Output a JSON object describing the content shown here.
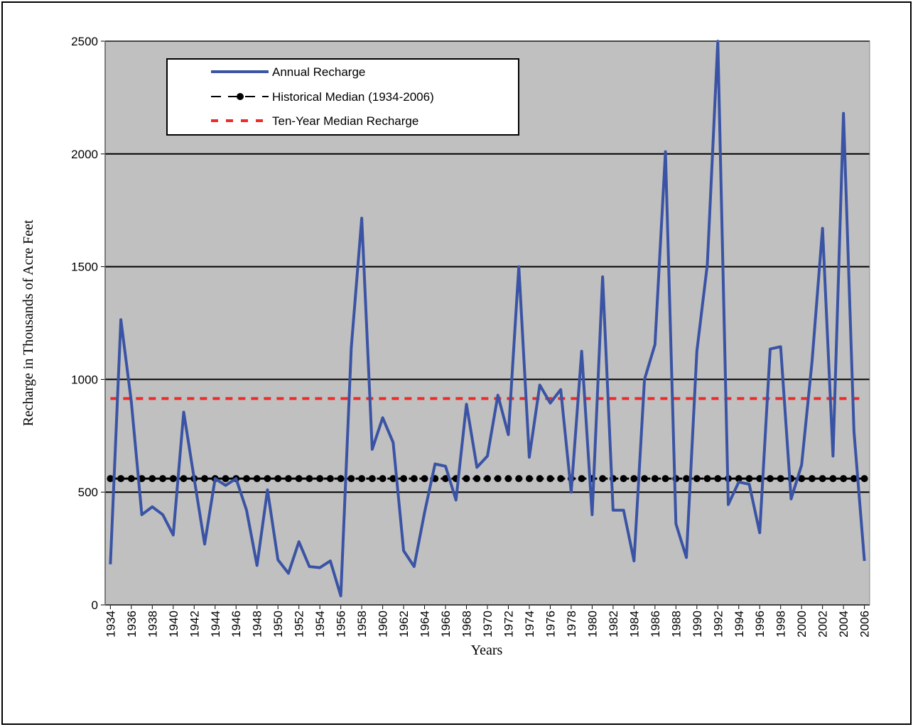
{
  "chart_data": {
    "type": "line",
    "x_label": "Years",
    "y_label": "Recharge in Thousands of Acre Feet",
    "x": [
      1934,
      1935,
      1936,
      1937,
      1938,
      1939,
      1940,
      1941,
      1942,
      1943,
      1944,
      1945,
      1946,
      1947,
      1948,
      1949,
      1950,
      1951,
      1952,
      1953,
      1954,
      1955,
      1956,
      1957,
      1958,
      1959,
      1960,
      1961,
      1962,
      1963,
      1964,
      1965,
      1966,
      1967,
      1968,
      1969,
      1970,
      1971,
      1972,
      1973,
      1974,
      1975,
      1976,
      1977,
      1978,
      1979,
      1980,
      1981,
      1982,
      1983,
      1984,
      1985,
      1986,
      1987,
      1988,
      1989,
      1990,
      1991,
      1992,
      1993,
      1994,
      1995,
      1996,
      1997,
      1998,
      1999,
      2000,
      2001,
      2002,
      2003,
      2004,
      2005,
      2006
    ],
    "series": [
      {
        "name": "Annual Recharge",
        "color": "#3a53a4",
        "values": [
          180,
          1265,
          900,
          400,
          435,
          400,
          310,
          855,
          560,
          270,
          560,
          530,
          560,
          420,
          175,
          510,
          200,
          140,
          280,
          170,
          165,
          195,
          40,
          1140,
          1715,
          690,
          830,
          720,
          240,
          170,
          410,
          625,
          615,
          465,
          890,
          610,
          660,
          930,
          755,
          1500,
          655,
          975,
          895,
          955,
          500,
          1125,
          400,
          1455,
          420,
          420,
          195,
          1000,
          1155,
          2010,
          360,
          210,
          1125,
          1510,
          2500,
          445,
          545,
          535,
          320,
          1135,
          1145,
          470,
          620,
          1080,
          1670,
          660,
          2180,
          770,
          195
        ]
      }
    ],
    "reference_lines": [
      {
        "name": "Historical Median (1934-2006)",
        "color": "#000000",
        "value": 560,
        "style": "dot-dash"
      },
      {
        "name": "Ten-Year Median Recharge",
        "color": "#ee2a2a",
        "value": 915,
        "style": "dash"
      }
    ],
    "xlim": [
      1933.5,
      2006.5
    ],
    "xticks": [
      1934,
      1936,
      1938,
      1940,
      1942,
      1944,
      1946,
      1948,
      1950,
      1952,
      1954,
      1956,
      1958,
      1960,
      1962,
      1964,
      1966,
      1968,
      1970,
      1972,
      1974,
      1976,
      1978,
      1980,
      1982,
      1984,
      1986,
      1988,
      1990,
      1992,
      1994,
      1996,
      1998,
      2000,
      2002,
      2004,
      2006
    ],
    "ylim": [
      0,
      2500
    ],
    "yticks": [
      0,
      500,
      1000,
      1500,
      2000,
      2500
    ],
    "grid": true
  }
}
